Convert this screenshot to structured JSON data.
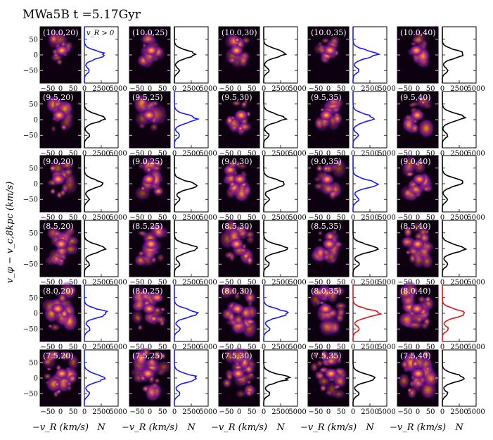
{
  "title": "MWa5B t =5.17Gyr",
  "ylabel": "v_φ − v_c,8kpc (km/s)",
  "note": "v_R > 0",
  "xlabel_phase": "−v_R (km/s)",
  "xlabel_hist": "N",
  "colors": {
    "black": "#000000",
    "blue": "#1a1aff",
    "red": "#ee1111",
    "bg": "#0d000f"
  },
  "chart_data": {
    "type": "heatmap",
    "phase_xticks": [
      "−50",
      "0",
      "50"
    ],
    "hist_xticks": [
      "0",
      "2500",
      "5000"
    ],
    "yticks": [
      "50",
      "0",
      "−50"
    ],
    "xlim_phase": [
      -80,
      80
    ],
    "ylim": [
      -90,
      90
    ],
    "xlim_hist": [
      0,
      5000
    ],
    "rows": [
      {
        "labels": [
          "(10.0,20)",
          "(10.0,25)",
          "(10.0,30)",
          "(10.0,35)",
          "(10.0,40)"
        ],
        "hist_colors": [
          "blue",
          "black",
          "black",
          "blue",
          "black"
        ],
        "hist_peaks": [
          3000,
          3000,
          3300,
          3500,
          3300
        ],
        "hist_centers": [
          0,
          2,
          5,
          2,
          3
        ]
      },
      {
        "labels": [
          "(9.5,20)",
          "(9.5,25)",
          "(9.5,30)",
          "(9.5,35)",
          "(9.5,40)"
        ],
        "hist_colors": [
          "black",
          "blue",
          "black",
          "blue",
          "black"
        ],
        "hist_peaks": [
          3000,
          3200,
          3200,
          3000,
          3200
        ],
        "hist_centers": [
          5,
          3,
          5,
          5,
          8
        ]
      },
      {
        "labels": [
          "(9.0,20)",
          "(9.0,25)",
          "(9.0,30)",
          "(9.0,35)",
          "(9.0,40)"
        ],
        "hist_colors": [
          "black",
          "black",
          "black",
          "blue",
          "black"
        ],
        "hist_peaks": [
          2800,
          3200,
          3300,
          3600,
          3000
        ],
        "hist_centers": [
          0,
          -5,
          0,
          0,
          5
        ]
      },
      {
        "labels": [
          "(8.5,20)",
          "(8.5,25)",
          "(8.5,30)",
          "(8.5,35)",
          "(8.5,40)"
        ],
        "hist_colors": [
          "black",
          "black",
          "black",
          "black",
          "black"
        ],
        "hist_peaks": [
          3000,
          3400,
          3300,
          3600,
          3300
        ],
        "hist_centers": [
          0,
          0,
          0,
          0,
          0
        ]
      },
      {
        "labels": [
          "(8.0,20)",
          "(8.0,25)",
          "(8.0,30)",
          "(8.0,35)",
          "(8.0,40)"
        ],
        "hist_colors": [
          "blue",
          "blue",
          "blue",
          "red",
          "red"
        ],
        "hist_peaks": [
          3500,
          3300,
          3700,
          3800,
          3500
        ],
        "hist_centers": [
          0,
          0,
          0,
          0,
          0
        ]
      },
      {
        "labels": [
          "(7.5,20)",
          "(7.5,25)",
          "(7.5,30)",
          "(7.5,35)",
          "(7.5,40)"
        ],
        "hist_colors": [
          "blue",
          "blue",
          "black",
          "black",
          "black"
        ],
        "hist_peaks": [
          3000,
          3300,
          3600,
          3300,
          3200
        ],
        "hist_centers": [
          0,
          0,
          0,
          0,
          0
        ]
      }
    ]
  }
}
